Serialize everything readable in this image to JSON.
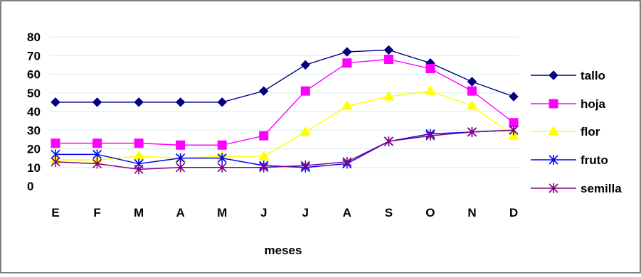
{
  "chart_data": {
    "type": "line",
    "title": "",
    "xlabel": "meses",
    "ylabel": "",
    "categories": [
      "E",
      "F",
      "M",
      "A",
      "M",
      "J",
      "J",
      "A",
      "S",
      "O",
      "N",
      "D"
    ],
    "ylim": [
      0,
      80
    ],
    "yticks": [
      0,
      10,
      20,
      30,
      40,
      50,
      60,
      70,
      80
    ],
    "grid": "horizontal",
    "legend": "right",
    "series": [
      {
        "name": "tallo",
        "color": "#000080",
        "marker": "diamond",
        "values": [
          45,
          45,
          45,
          45,
          45,
          51,
          65,
          72,
          73,
          66,
          56,
          48
        ]
      },
      {
        "name": "hoja",
        "color": "#ff00ff",
        "marker": "square",
        "values": [
          23,
          23,
          23,
          22,
          22,
          27,
          51,
          66,
          68,
          63,
          51,
          34
        ]
      },
      {
        "name": "flor",
        "color": "#ffff00",
        "marker": "triangle",
        "values": [
          14,
          14,
          16,
          15,
          16,
          16,
          29,
          43,
          48,
          51,
          43,
          27
        ]
      },
      {
        "name": "fruto",
        "color": "#0000ff",
        "marker": "star",
        "values": [
          17,
          17,
          12,
          15,
          15,
          11,
          10,
          12,
          24,
          28,
          29,
          30
        ]
      },
      {
        "name": "semilla",
        "color": "#800080",
        "marker": "star",
        "values": [
          13,
          12,
          9,
          10,
          10,
          10,
          11,
          13,
          24,
          27,
          29,
          30
        ]
      }
    ]
  }
}
